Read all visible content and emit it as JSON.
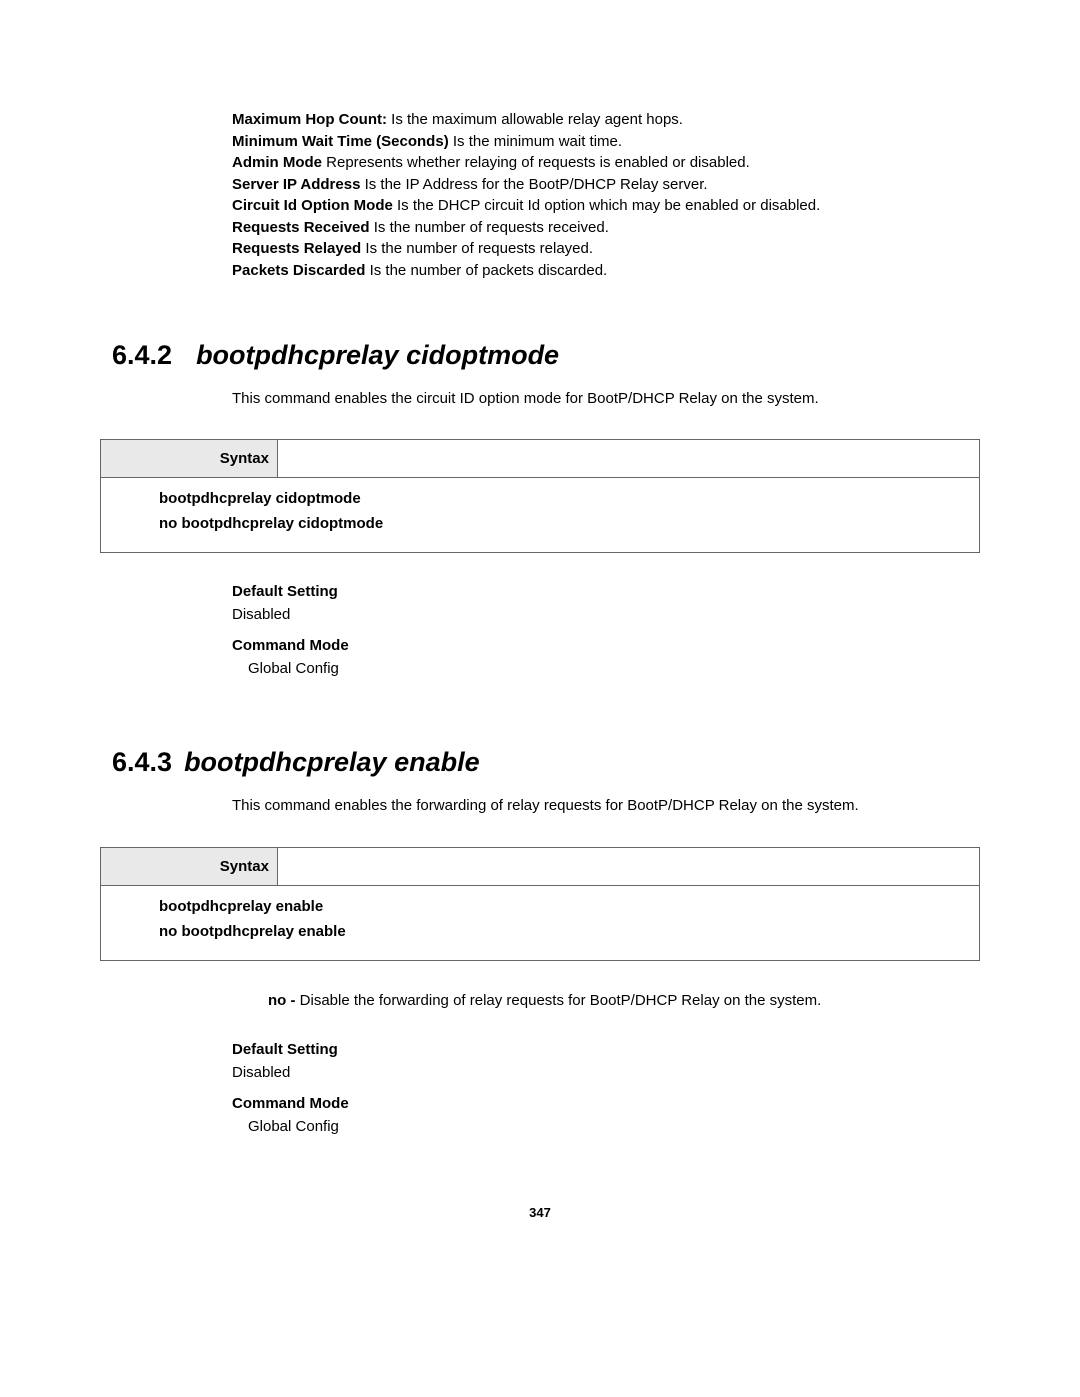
{
  "fields": [
    {
      "label": "Maximum Hop Count:",
      "text": " Is the maximum allowable relay agent hops."
    },
    {
      "label": "Minimum Wait Time (Seconds)",
      "text": " Is the minimum wait time."
    },
    {
      "label": "Admin Mode",
      "text": " Represents whether relaying of requests is enabled or disabled."
    },
    {
      "label": "Server IP Address",
      "text": " Is the IP Address for the BootP/DHCP Relay server."
    },
    {
      "label": "Circuit Id Option Mode",
      "text": " Is the DHCP circuit Id option which may be enabled or disabled."
    },
    {
      "label": "Requests Received",
      "text": " Is the number of requests received."
    },
    {
      "label": "Requests Relayed",
      "text": " Is the number of requests relayed."
    },
    {
      "label": "Packets Discarded",
      "text": " Is the number of packets discarded."
    }
  ],
  "section1": {
    "number": "6.4.2",
    "title": "bootpdhcprelay cidoptmode",
    "description": "This command enables the circuit ID option mode for BootP/DHCP Relay on the system.",
    "syntax_label": "Syntax",
    "syntax_lines": [
      "bootpdhcprelay cidoptmode",
      "no bootpdhcprelay cidoptmode"
    ],
    "default_setting_label": "Default Setting",
    "default_setting_value": "Disabled",
    "command_mode_label": "Command Mode",
    "command_mode_value": "Global Config"
  },
  "section2": {
    "number": "6.4.3",
    "title": "bootpdhcprelay enable",
    "description": "This command enables the forwarding of relay requests for BootP/DHCP Relay on the system.",
    "syntax_label": "Syntax",
    "syntax_lines": [
      "bootpdhcprelay enable",
      "no bootpdhcprelay enable"
    ],
    "note_label": "no - ",
    "note_text": "Disable the forwarding of relay requests for BootP/DHCP Relay on the system.",
    "default_setting_label": "Default Setting",
    "default_setting_value": "Disabled",
    "command_mode_label": "Command Mode",
    "command_mode_value": "Global Config"
  },
  "page_number": "347"
}
